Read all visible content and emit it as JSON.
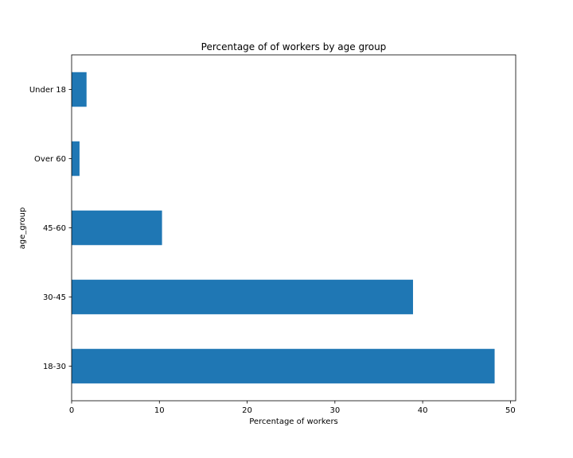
{
  "chart_data": {
    "type": "bar",
    "orientation": "horizontal",
    "title": "Percentage of of workers by age group",
    "xlabel": "Percentage of workers",
    "ylabel": "age_group",
    "categories": [
      "Under 18",
      "Over 60",
      "45-60",
      "30-45",
      "18-30"
    ],
    "values": [
      1.7,
      0.9,
      10.3,
      38.9,
      48.2
    ],
    "xlim": [
      0,
      50.6
    ],
    "xticks": [
      "0",
      "10",
      "20",
      "30",
      "40",
      "50"
    ],
    "grid": false,
    "legend": "none",
    "bar_color": "#1f77b4"
  }
}
